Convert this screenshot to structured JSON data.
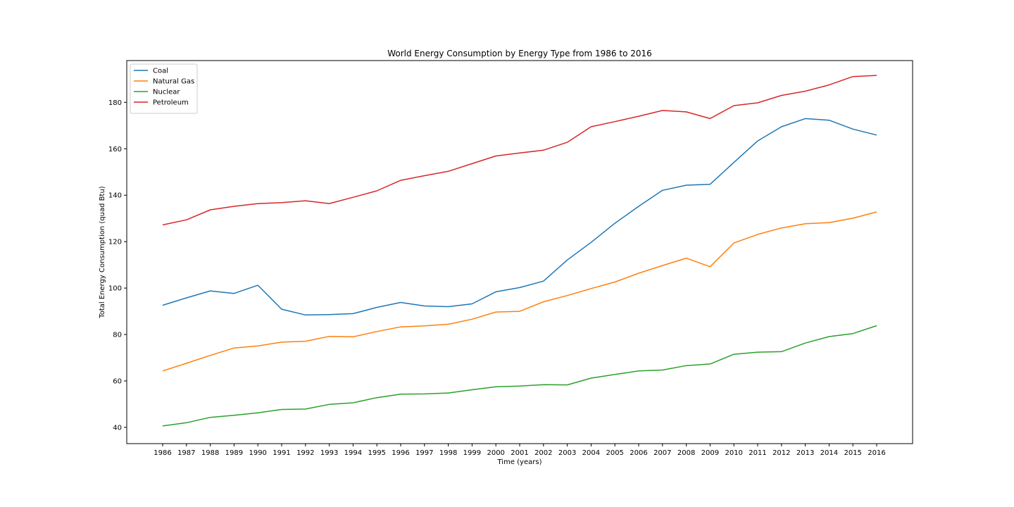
{
  "chart_data": {
    "type": "line",
    "title": "World Energy Consumption by Energy Type from 1986 to 2016",
    "xlabel": "Time (years)",
    "ylabel": "Total Energy Consumption (quad Btu)",
    "x": [
      "1986",
      "1987",
      "1988",
      "1989",
      "1990",
      "1991",
      "1992",
      "1993",
      "1994",
      "1995",
      "1996",
      "1997",
      "1998",
      "1999",
      "2000",
      "2001",
      "2002",
      "2003",
      "2004",
      "2005",
      "2006",
      "2007",
      "2008",
      "2009",
      "2010",
      "2011",
      "2012",
      "2013",
      "2014",
      "2015",
      "2016"
    ],
    "y_ticks": [
      "40",
      "60",
      "80",
      "100",
      "120",
      "140",
      "160",
      "180"
    ],
    "ylim": [
      33,
      198
    ],
    "grid": false,
    "legend_position": "top-left",
    "series": [
      {
        "name": "Coal",
        "color": "#1f77b4",
        "values": [
          92.6,
          95.8,
          98.8,
          97.7,
          101.2,
          90.9,
          88.4,
          88.6,
          89.0,
          91.7,
          93.8,
          92.3,
          92.0,
          93.2,
          98.4,
          100.2,
          103.0,
          112.1,
          119.7,
          127.9,
          135.2,
          142.1,
          144.3,
          144.7,
          154.1,
          163.4,
          169.5,
          173.0,
          172.3,
          168.5,
          165.9
        ]
      },
      {
        "name": "Natural Gas",
        "color": "#ff7f0e",
        "values": [
          64.3,
          67.6,
          71.0,
          74.2,
          75.1,
          76.7,
          77.1,
          79.2,
          79.0,
          81.3,
          83.3,
          83.7,
          84.4,
          86.6,
          89.7,
          90.0,
          94.1,
          96.8,
          99.8,
          102.6,
          106.4,
          109.7,
          112.9,
          109.2,
          119.4,
          123.1,
          125.9,
          127.7,
          128.2,
          130.1,
          132.8
        ]
      },
      {
        "name": "Nuclear",
        "color": "#2ca02c",
        "values": [
          40.6,
          42.0,
          44.3,
          45.2,
          46.3,
          47.7,
          47.9,
          49.9,
          50.6,
          52.8,
          54.3,
          54.4,
          54.8,
          56.2,
          57.5,
          57.8,
          58.4,
          58.3,
          61.2,
          62.8,
          64.3,
          64.7,
          66.6,
          67.3,
          71.5,
          72.4,
          72.6,
          76.3,
          79.1,
          80.4,
          83.8
        ]
      },
      {
        "name": "Petroleum",
        "color": "#d62728",
        "values": [
          127.2,
          129.4,
          133.7,
          135.2,
          136.4,
          136.8,
          137.6,
          136.4,
          139.1,
          141.9,
          146.4,
          148.4,
          150.3,
          153.6,
          156.9,
          158.2,
          159.4,
          162.8,
          169.5,
          171.7,
          174.0,
          176.5,
          175.9,
          173.0,
          178.6,
          179.8,
          183.0,
          184.8,
          187.5,
          191.1,
          191.6
        ]
      }
    ]
  }
}
